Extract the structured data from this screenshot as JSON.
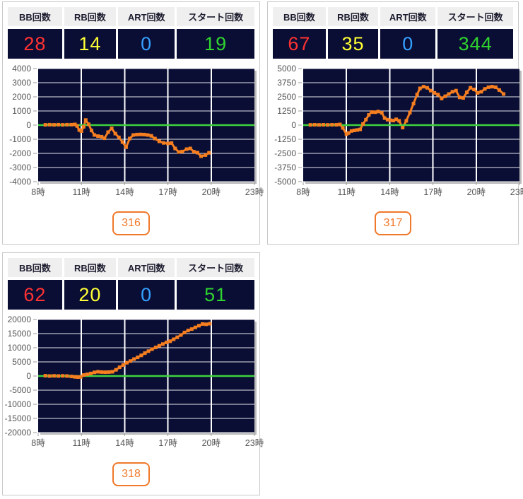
{
  "stats_headers": [
    "BB回数",
    "RB回数",
    "ART回数",
    "スタート回数"
  ],
  "colors": {
    "bb": "#ff3232",
    "rb": "#ffff35",
    "art": "#35a0ff",
    "start": "#2fd42f",
    "line": "#f57e20",
    "zero_line": "#3fd23f",
    "plot_bg": "#0a0e34",
    "grid": "#ffffff",
    "axis_text": "#555555",
    "badge": "#f0782a"
  },
  "panels": [
    {
      "machine_label": "316",
      "values": {
        "bb": "28",
        "rb": "14",
        "art": "0",
        "start": "19"
      }
    },
    {
      "machine_label": "317",
      "values": {
        "bb": "67",
        "rb": "35",
        "art": "0",
        "start": "344"
      }
    },
    {
      "machine_label": "318",
      "values": {
        "bb": "62",
        "rb": "20",
        "art": "0",
        "start": "51"
      }
    }
  ],
  "chart_data": [
    {
      "type": "line",
      "title": "",
      "x": {
        "min": 8,
        "max": 23,
        "tick_hours": [
          8,
          11,
          14,
          17,
          20,
          23
        ],
        "tick_labels": [
          "8時",
          "11時",
          "14時",
          "17時",
          "20時",
          "23時"
        ],
        "grid_hours": [
          11,
          14,
          17,
          20
        ]
      },
      "y": {
        "min": -4000,
        "max": 4000,
        "step": 1000
      },
      "zero_line": true,
      "grid": true,
      "points": [
        [
          8.5,
          20
        ],
        [
          8.8,
          30
        ],
        [
          9.1,
          20
        ],
        [
          9.4,
          30
        ],
        [
          9.7,
          20
        ],
        [
          10.0,
          30
        ],
        [
          10.3,
          30
        ],
        [
          10.55,
          50
        ],
        [
          10.7,
          -60
        ],
        [
          10.85,
          -350
        ],
        [
          11.0,
          -420
        ],
        [
          11.15,
          -120
        ],
        [
          11.3,
          360
        ],
        [
          11.5,
          60
        ],
        [
          11.7,
          -380
        ],
        [
          11.9,
          -700
        ],
        [
          12.15,
          -780
        ],
        [
          12.4,
          -820
        ],
        [
          12.6,
          -930
        ],
        [
          12.85,
          -500
        ],
        [
          13.1,
          -230
        ],
        [
          13.35,
          -600
        ],
        [
          13.6,
          -870
        ],
        [
          13.85,
          -1200
        ],
        [
          14.1,
          -1560
        ],
        [
          14.35,
          -950
        ],
        [
          14.6,
          -700
        ],
        [
          14.85,
          -670
        ],
        [
          15.1,
          -660
        ],
        [
          15.35,
          -670
        ],
        [
          15.6,
          -700
        ],
        [
          15.85,
          -760
        ],
        [
          16.1,
          -950
        ],
        [
          16.4,
          -1150
        ],
        [
          16.7,
          -1260
        ],
        [
          17.0,
          -1300
        ],
        [
          17.25,
          -1270
        ],
        [
          17.5,
          -1650
        ],
        [
          17.75,
          -1900
        ],
        [
          18.0,
          -1870
        ],
        [
          18.3,
          -1700
        ],
        [
          18.55,
          -1650
        ],
        [
          18.8,
          -1880
        ],
        [
          19.05,
          -1950
        ],
        [
          19.3,
          -2200
        ],
        [
          19.6,
          -2120
        ],
        [
          19.85,
          -1960
        ]
      ]
    },
    {
      "type": "line",
      "title": "",
      "x": {
        "min": 8,
        "max": 23,
        "tick_hours": [
          8,
          11,
          14,
          17,
          20,
          23
        ],
        "tick_labels": [
          "8時",
          "11時",
          "14時",
          "17時",
          "20時",
          "23時"
        ],
        "grid_hours": [
          11,
          14,
          17,
          20
        ]
      },
      "y": {
        "min": -5000,
        "max": 5000,
        "step": 1250
      },
      "zero_line": true,
      "grid": true,
      "points": [
        [
          8.5,
          20
        ],
        [
          8.8,
          30
        ],
        [
          9.1,
          20
        ],
        [
          9.4,
          30
        ],
        [
          9.7,
          20
        ],
        [
          10.0,
          30
        ],
        [
          10.3,
          30
        ],
        [
          10.55,
          60
        ],
        [
          10.75,
          -250
        ],
        [
          11.0,
          -800
        ],
        [
          11.15,
          -700
        ],
        [
          11.35,
          -520
        ],
        [
          11.55,
          -470
        ],
        [
          11.75,
          -430
        ],
        [
          11.95,
          -380
        ],
        [
          12.15,
          100
        ],
        [
          12.35,
          480
        ],
        [
          12.55,
          900
        ],
        [
          12.75,
          1150
        ],
        [
          13.0,
          1140
        ],
        [
          13.2,
          1200
        ],
        [
          13.45,
          1090
        ],
        [
          13.65,
          620
        ],
        [
          13.85,
          480
        ],
        [
          14.05,
          430
        ],
        [
          14.25,
          400
        ],
        [
          14.45,
          510
        ],
        [
          14.65,
          380
        ],
        [
          14.9,
          -220
        ],
        [
          15.15,
          380
        ],
        [
          15.4,
          1100
        ],
        [
          15.65,
          1900
        ],
        [
          15.9,
          2700
        ],
        [
          16.1,
          3250
        ],
        [
          16.35,
          3400
        ],
        [
          16.6,
          3300
        ],
        [
          16.85,
          3050
        ],
        [
          17.1,
          2850
        ],
        [
          17.35,
          2700
        ],
        [
          17.6,
          2350
        ],
        [
          17.85,
          2550
        ],
        [
          18.1,
          2750
        ],
        [
          18.35,
          2950
        ],
        [
          18.6,
          3050
        ],
        [
          18.85,
          2450
        ],
        [
          19.1,
          2400
        ],
        [
          19.35,
          2900
        ],
        [
          19.6,
          3300
        ],
        [
          19.85,
          3150
        ],
        [
          20.1,
          2850
        ],
        [
          20.35,
          2950
        ],
        [
          20.6,
          3200
        ],
        [
          20.85,
          3350
        ],
        [
          21.1,
          3400
        ],
        [
          21.35,
          3350
        ],
        [
          21.6,
          3100
        ],
        [
          21.9,
          2750
        ]
      ]
    },
    {
      "type": "line",
      "title": "",
      "x": {
        "min": 8,
        "max": 23,
        "tick_hours": [
          8,
          11,
          14,
          17,
          20,
          23
        ],
        "tick_labels": [
          "8時",
          "11時",
          "14時",
          "17時",
          "20時",
          "23時"
        ],
        "grid_hours": [
          11,
          14,
          17,
          20
        ]
      },
      "y": {
        "min": -20000,
        "max": 20000,
        "step": 5000
      },
      "zero_line": true,
      "grid": true,
      "points": [
        [
          8.5,
          100
        ],
        [
          8.8,
          0
        ],
        [
          9.1,
          60
        ],
        [
          9.4,
          0
        ],
        [
          9.7,
          60
        ],
        [
          10.0,
          0
        ],
        [
          10.3,
          -150
        ],
        [
          10.55,
          -300
        ],
        [
          10.75,
          -380
        ],
        [
          10.95,
          -320
        ],
        [
          11.15,
          350
        ],
        [
          11.4,
          600
        ],
        [
          11.65,
          900
        ],
        [
          11.9,
          1300
        ],
        [
          12.15,
          1500
        ],
        [
          12.4,
          1400
        ],
        [
          12.65,
          1350
        ],
        [
          12.9,
          1400
        ],
        [
          13.15,
          1500
        ],
        [
          13.4,
          2200
        ],
        [
          13.65,
          3100
        ],
        [
          13.9,
          3900
        ],
        [
          14.15,
          4700
        ],
        [
          14.4,
          5300
        ],
        [
          14.65,
          6000
        ],
        [
          14.9,
          6600
        ],
        [
          15.15,
          7300
        ],
        [
          15.4,
          8100
        ],
        [
          15.65,
          8800
        ],
        [
          15.9,
          9500
        ],
        [
          16.15,
          10100
        ],
        [
          16.4,
          10700
        ],
        [
          16.65,
          11300
        ],
        [
          16.9,
          11900
        ],
        [
          17.15,
          12300
        ],
        [
          17.4,
          13000
        ],
        [
          17.65,
          13700
        ],
        [
          17.9,
          14500
        ],
        [
          18.15,
          15400
        ],
        [
          18.4,
          16100
        ],
        [
          18.65,
          16600
        ],
        [
          18.9,
          17200
        ],
        [
          19.15,
          17800
        ],
        [
          19.4,
          18400
        ],
        [
          19.65,
          18300
        ],
        [
          19.9,
          18500
        ]
      ]
    }
  ]
}
